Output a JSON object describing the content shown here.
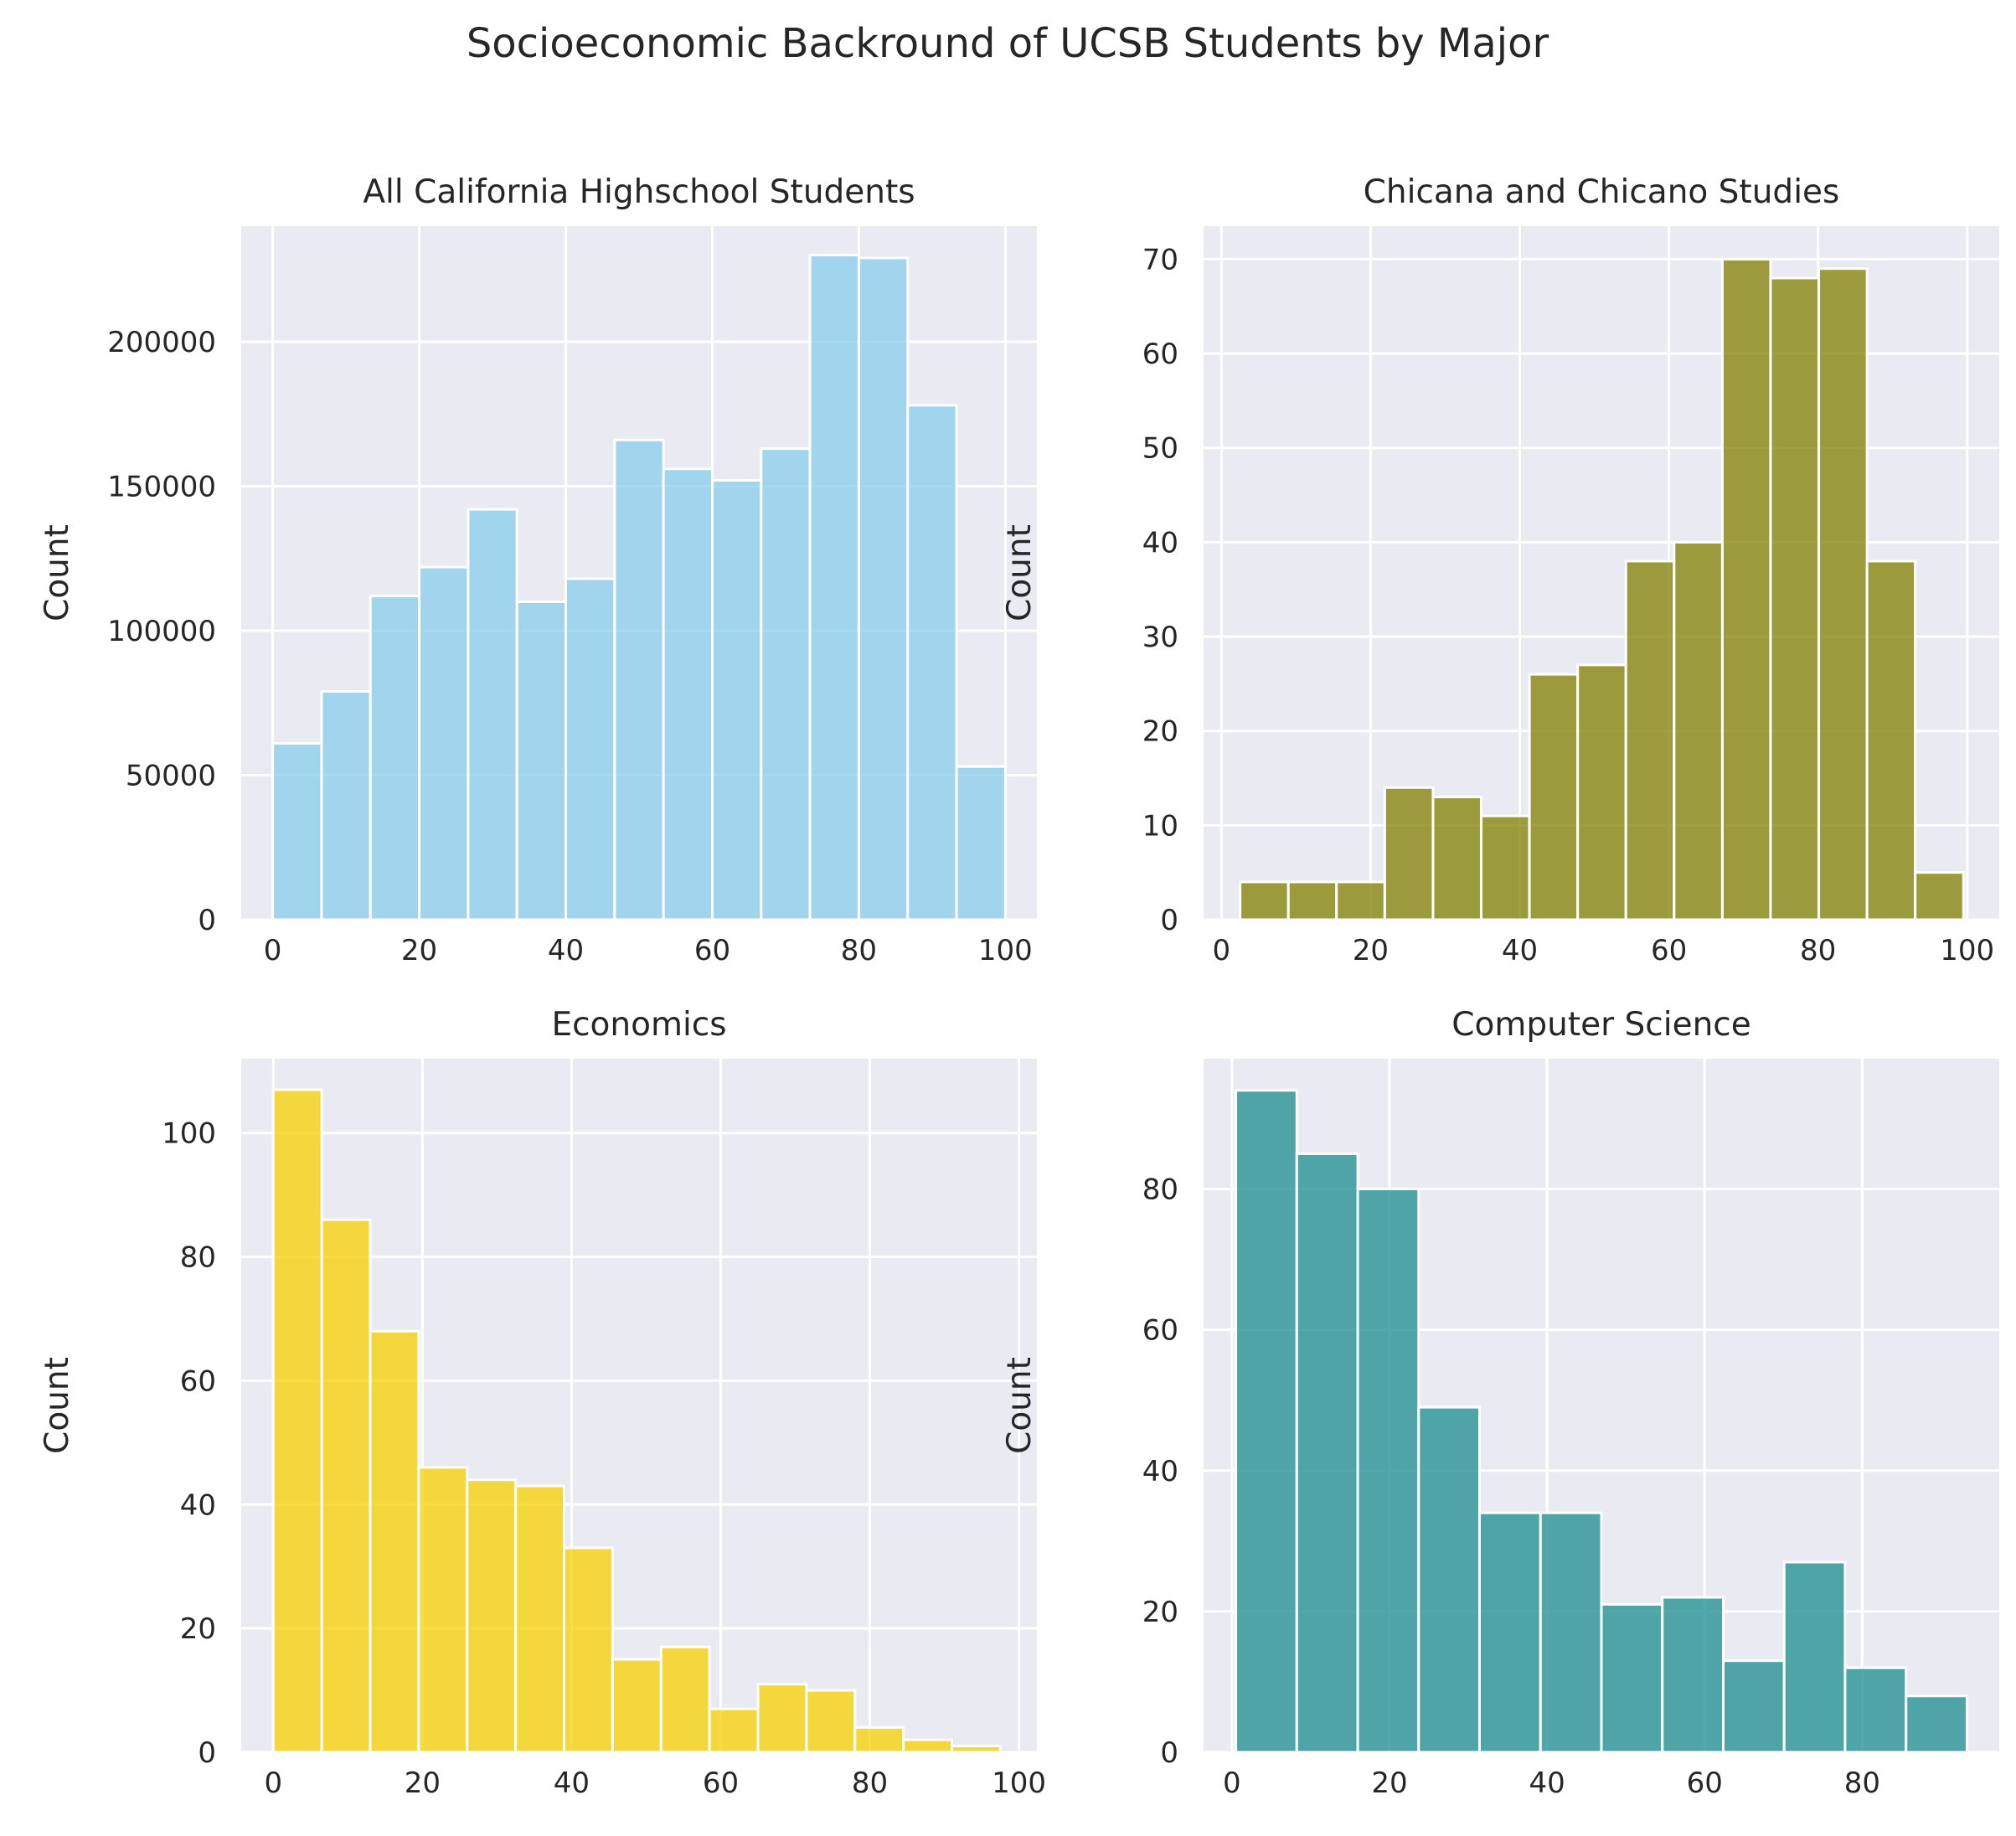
{
  "suptitle": "Socioeconomic Backround of UCSB Students by Major",
  "chart_data": [
    {
      "type": "bar",
      "title": "All California Highschool Students",
      "xlabel": "",
      "ylabel": "Count",
      "color": "#87CEEB",
      "grid": true,
      "xlim": [
        -4.3,
        104.3
      ],
      "ylim": [
        0,
        240000
      ],
      "xticks": [
        0,
        20,
        40,
        60,
        80,
        100
      ],
      "yticks": [
        0,
        50000,
        100000,
        150000,
        200000
      ],
      "bin_edges": [
        0,
        6.67,
        13.33,
        20,
        26.67,
        33.33,
        40,
        46.67,
        53.33,
        60,
        66.67,
        73.33,
        80,
        86.67,
        93.33,
        100
      ],
      "values": [
        61000,
        79000,
        112000,
        122000,
        142000,
        110000,
        118000,
        166000,
        156000,
        152000,
        163000,
        230000,
        229000,
        178000,
        53000
      ]
    },
    {
      "type": "bar",
      "title": "Chicana and Chicano Studies",
      "xlabel": "",
      "ylabel": "Count",
      "color": "#808000",
      "grid": true,
      "xlim": [
        -2.4,
        104.3
      ],
      "ylim": [
        0,
        73.5
      ],
      "xticks": [
        0,
        20,
        40,
        60,
        80,
        100
      ],
      "yticks": [
        0,
        10,
        20,
        30,
        40,
        50,
        60,
        70
      ],
      "bin_edges": [
        2.5,
        8.97,
        15.43,
        21.9,
        28.37,
        34.83,
        41.3,
        47.77,
        54.23,
        60.7,
        67.17,
        73.63,
        80.1,
        86.57,
        93.03,
        99.5
      ],
      "values": [
        4,
        4,
        4,
        14,
        13,
        11,
        26,
        27,
        38,
        40,
        70,
        68,
        69,
        38,
        5
      ]
    },
    {
      "type": "bar",
      "title": "Economics",
      "xlabel": "",
      "ylabel": "Count",
      "color": "#F5D000",
      "grid": true,
      "xlim": [
        -4.3,
        102.4
      ],
      "ylim": [
        0,
        112
      ],
      "xticks": [
        0,
        20,
        40,
        60,
        80,
        100
      ],
      "yticks": [
        0,
        20,
        40,
        60,
        80,
        100
      ],
      "bin_edges": [
        0,
        6.5,
        13,
        19.5,
        26,
        32.5,
        39,
        45.5,
        52,
        58.5,
        65,
        71.5,
        78,
        84.5,
        91,
        97.5
      ],
      "values": [
        107,
        86,
        68,
        46,
        44,
        43,
        33,
        15,
        17,
        7,
        11,
        10,
        4,
        2,
        1
      ]
    },
    {
      "type": "bar",
      "title": "Computer Science",
      "xlabel": "",
      "ylabel": "Count",
      "color": "#1A8C8C",
      "grid": true,
      "xlim": [
        -3.6,
        97.4
      ],
      "ylim": [
        0,
        98.5
      ],
      "xticks": [
        0,
        20,
        40,
        60,
        80
      ],
      "yticks": [
        0,
        20,
        40,
        60,
        80
      ],
      "bin_edges": [
        0.5,
        8.23,
        15.97,
        23.7,
        31.43,
        39.17,
        46.9,
        54.63,
        62.37,
        70.1,
        77.83,
        85.57,
        93.3
      ],
      "values": [
        94,
        85,
        80,
        49,
        34,
        34,
        21,
        22,
        13,
        27,
        12,
        8
      ]
    }
  ]
}
